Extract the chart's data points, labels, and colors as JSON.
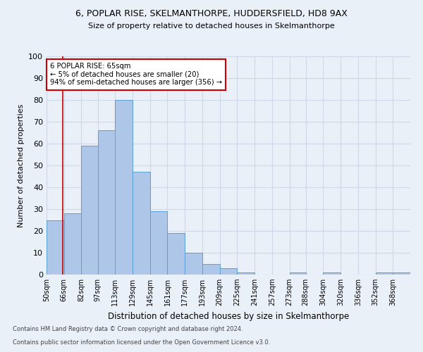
{
  "title_line1": "6, POPLAR RISE, SKELMANTHORPE, HUDDERSFIELD, HD8 9AX",
  "title_line2": "Size of property relative to detached houses in Skelmanthorpe",
  "xlabel": "Distribution of detached houses by size in Skelmanthorpe",
  "ylabel": "Number of detached properties",
  "footnote1": "Contains HM Land Registry data © Crown copyright and database right 2024.",
  "footnote2": "Contains public sector information licensed under the Open Government Licence v3.0.",
  "categories": [
    "50sqm",
    "66sqm",
    "82sqm",
    "97sqm",
    "113sqm",
    "129sqm",
    "145sqm",
    "161sqm",
    "177sqm",
    "193sqm",
    "209sqm",
    "225sqm",
    "241sqm",
    "257sqm",
    "273sqm",
    "288sqm",
    "304sqm",
    "320sqm",
    "336sqm",
    "352sqm",
    "368sqm"
  ],
  "values": [
    25,
    28,
    59,
    66,
    80,
    47,
    29,
    19,
    10,
    5,
    3,
    1,
    0,
    0,
    1,
    0,
    1,
    0,
    0,
    1,
    1
  ],
  "bar_color": "#aec6e8",
  "bar_edge_color": "#5a9fd4",
  "grid_color": "#d0d8e8",
  "background_color": "#eaf0f8",
  "property_line_x": 65,
  "property_line_color": "#cc0000",
  "annotation_line1": "6 POPLAR RISE: 65sqm",
  "annotation_line2": "← 5% of detached houses are smaller (20)",
  "annotation_line3": "94% of semi-detached houses are larger (356) →",
  "annotation_box_color": "#ffffff",
  "annotation_box_edge": "#cc0000",
  "ylim": [
    0,
    100
  ],
  "bin_edges": [
    50,
    66,
    82,
    97,
    113,
    129,
    145,
    161,
    177,
    193,
    209,
    225,
    241,
    257,
    273,
    288,
    304,
    320,
    336,
    352,
    368,
    384
  ]
}
